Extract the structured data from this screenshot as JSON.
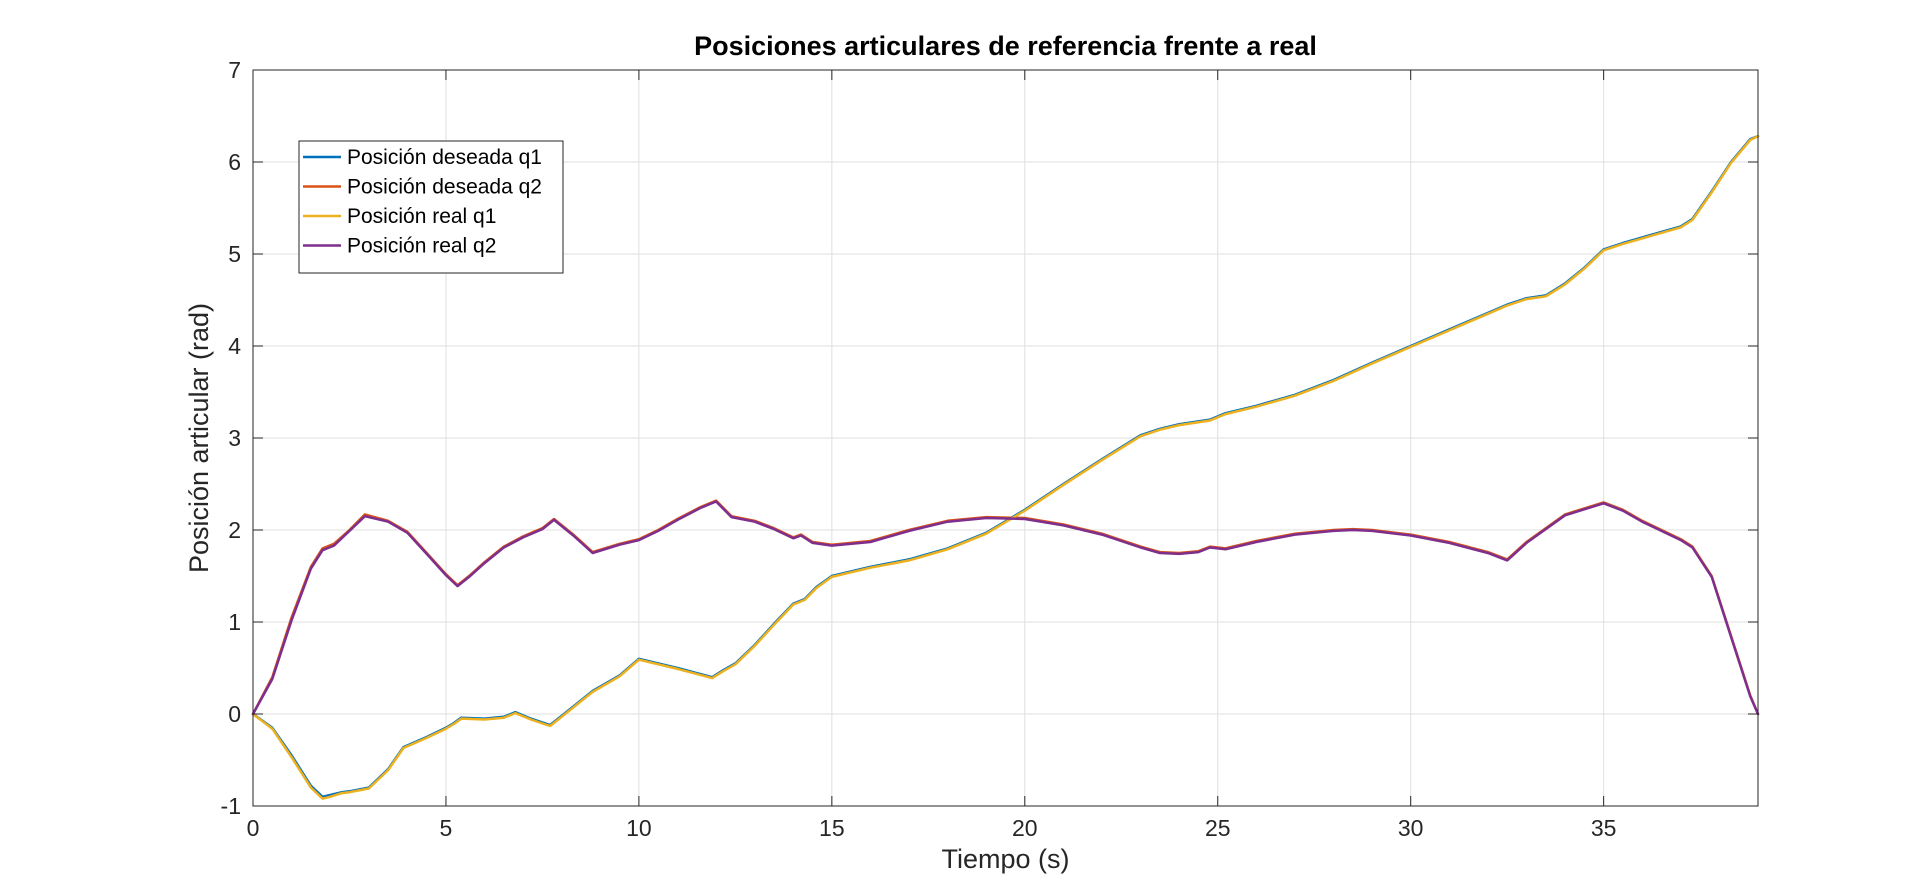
{
  "chart_data": {
    "type": "line",
    "title": "Posiciones articulares de referencia frente a real",
    "xlabel": "Tiempo (s)",
    "ylabel": "Posición articular (rad)",
    "xlim": [
      0,
      39
    ],
    "ylim": [
      -1,
      7
    ],
    "xticks": [
      0,
      5,
      10,
      15,
      20,
      25,
      30,
      35
    ],
    "yticks": [
      -1,
      0,
      1,
      2,
      3,
      4,
      5,
      6,
      7
    ],
    "xtick_labels": [
      "0",
      "5",
      "10",
      "15",
      "20",
      "25",
      "30",
      "35"
    ],
    "ytick_labels": [
      "-1",
      "0",
      "1",
      "2",
      "3",
      "4",
      "5",
      "6",
      "7"
    ],
    "grid": true,
    "legend_position": "top-left",
    "series": [
      {
        "name": "Posición deseada q1",
        "color": "#0072BD",
        "x": [
          0,
          0.5,
          1,
          1.5,
          1.8,
          2,
          2.3,
          2.5,
          3,
          3.5,
          3.9,
          4.5,
          5,
          5.2,
          5.4,
          6,
          6.5,
          6.8,
          7.2,
          7.7,
          8,
          8.8,
          9.5,
          10,
          11,
          11.9,
          12.2,
          12.5,
          13,
          13.5,
          14,
          14.3,
          14.6,
          15,
          16,
          17,
          18,
          19,
          20,
          21,
          22,
          23,
          23.5,
          24,
          24.8,
          25.2,
          26,
          27,
          28,
          29,
          30,
          31,
          32,
          32.5,
          33,
          33.5,
          34,
          34.5,
          35,
          35.5,
          36,
          37,
          37.3,
          37.8,
          38.3,
          38.8,
          39
        ],
        "values": [
          0,
          -0.15,
          -0.45,
          -0.78,
          -0.9,
          -0.88,
          -0.85,
          -0.84,
          -0.8,
          -0.6,
          -0.36,
          -0.25,
          -0.15,
          -0.1,
          -0.04,
          -0.05,
          -0.03,
          0.02,
          -0.05,
          -0.12,
          -0.02,
          0.25,
          0.42,
          0.6,
          0.5,
          0.4,
          0.48,
          0.55,
          0.75,
          0.98,
          1.2,
          1.25,
          1.38,
          1.5,
          1.6,
          1.68,
          1.8,
          1.97,
          2.22,
          2.5,
          2.77,
          3.03,
          3.1,
          3.15,
          3.2,
          3.27,
          3.35,
          3.47,
          3.63,
          3.82,
          4.0,
          4.18,
          4.36,
          4.45,
          4.52,
          4.55,
          4.68,
          4.85,
          5.05,
          5.12,
          5.18,
          5.3,
          5.38,
          5.68,
          6.0,
          6.25,
          6.28
        ]
      },
      {
        "name": "Posición deseada q2",
        "color": "#D95319",
        "x": [
          0,
          0.5,
          1,
          1.5,
          1.8,
          2.1,
          2.5,
          2.9,
          3.5,
          4,
          4.5,
          5,
          5.3,
          5.6,
          6,
          6.5,
          7,
          7.5,
          7.8,
          8.3,
          8.8,
          9.5,
          10,
          10.5,
          11,
          11.6,
          12,
          12.4,
          13,
          13.5,
          14,
          14.2,
          14.5,
          15,
          16,
          17,
          18,
          19,
          20,
          21,
          22,
          23,
          23.5,
          24,
          24.5,
          24.8,
          25.2,
          26,
          27,
          28,
          28.5,
          29,
          30,
          31,
          32,
          32.5,
          33,
          34,
          35,
          35.5,
          36,
          37,
          37.3,
          37.8,
          38.3,
          38.8,
          39
        ],
        "values": [
          0,
          0.4,
          1.05,
          1.6,
          1.8,
          1.85,
          2.0,
          2.17,
          2.1,
          1.98,
          1.75,
          1.52,
          1.4,
          1.5,
          1.65,
          1.82,
          1.93,
          2.02,
          2.12,
          1.95,
          1.76,
          1.85,
          1.9,
          2.0,
          2.12,
          2.25,
          2.32,
          2.15,
          2.1,
          2.02,
          1.92,
          1.95,
          1.87,
          1.84,
          1.88,
          2.0,
          2.1,
          2.14,
          2.13,
          2.06,
          1.96,
          1.82,
          1.76,
          1.75,
          1.77,
          1.82,
          1.8,
          1.88,
          1.96,
          2.0,
          2.01,
          2.0,
          1.95,
          1.87,
          1.76,
          1.68,
          1.87,
          2.17,
          2.3,
          2.22,
          2.1,
          1.9,
          1.82,
          1.5,
          0.85,
          0.2,
          0
        ]
      },
      {
        "name": "Posición real q1",
        "color": "#EDB120",
        "x": [
          0,
          0.5,
          1,
          1.5,
          1.8,
          2,
          2.3,
          2.5,
          3,
          3.5,
          3.9,
          4.5,
          5,
          5.2,
          5.4,
          6,
          6.5,
          6.8,
          7.2,
          7.7,
          8,
          8.8,
          9.5,
          10,
          11,
          11.9,
          12.2,
          12.5,
          13,
          13.5,
          14,
          14.3,
          14.6,
          15,
          16,
          17,
          18,
          19,
          20,
          21,
          22,
          23,
          23.5,
          24,
          24.8,
          25.2,
          26,
          27,
          28,
          29,
          30,
          31,
          32,
          32.5,
          33,
          33.5,
          34,
          34.5,
          35,
          35.5,
          36,
          37,
          37.3,
          37.8,
          38.3,
          38.8,
          39
        ],
        "values": [
          0,
          -0.16,
          -0.47,
          -0.8,
          -0.92,
          -0.9,
          -0.86,
          -0.85,
          -0.81,
          -0.61,
          -0.37,
          -0.26,
          -0.16,
          -0.11,
          -0.05,
          -0.06,
          -0.04,
          0.01,
          -0.06,
          -0.13,
          -0.03,
          0.24,
          0.41,
          0.59,
          0.49,
          0.39,
          0.47,
          0.54,
          0.74,
          0.97,
          1.19,
          1.24,
          1.37,
          1.49,
          1.59,
          1.67,
          1.79,
          1.96,
          2.21,
          2.49,
          2.76,
          3.02,
          3.09,
          3.14,
          3.19,
          3.26,
          3.34,
          3.46,
          3.62,
          3.81,
          3.99,
          4.17,
          4.35,
          4.44,
          4.51,
          4.54,
          4.67,
          4.84,
          5.04,
          5.11,
          5.17,
          5.29,
          5.37,
          5.67,
          5.99,
          6.24,
          6.28
        ]
      },
      {
        "name": "Posición real q2",
        "color": "#7E2F8E",
        "x": [
          0,
          0.5,
          1,
          1.5,
          1.8,
          2.1,
          2.5,
          2.9,
          3.5,
          4,
          4.5,
          5,
          5.3,
          5.6,
          6,
          6.5,
          7,
          7.5,
          7.8,
          8.3,
          8.8,
          9.5,
          10,
          10.5,
          11,
          11.6,
          12,
          12.4,
          13,
          13.5,
          14,
          14.2,
          14.5,
          15,
          16,
          17,
          18,
          19,
          20,
          21,
          22,
          23,
          23.5,
          24,
          24.5,
          24.8,
          25.2,
          26,
          27,
          28,
          28.5,
          29,
          30,
          31,
          32,
          32.5,
          33,
          34,
          35,
          35.5,
          36,
          37,
          37.3,
          37.8,
          38.3,
          38.8,
          39
        ],
        "values": [
          0,
          0.38,
          1.02,
          1.58,
          1.78,
          1.83,
          1.99,
          2.15,
          2.09,
          1.97,
          1.74,
          1.51,
          1.39,
          1.49,
          1.64,
          1.81,
          1.92,
          2.01,
          2.11,
          1.94,
          1.75,
          1.84,
          1.89,
          1.99,
          2.11,
          2.24,
          2.31,
          2.14,
          2.09,
          2.01,
          1.91,
          1.94,
          1.86,
          1.83,
          1.87,
          1.99,
          2.09,
          2.13,
          2.12,
          2.05,
          1.95,
          1.81,
          1.75,
          1.74,
          1.76,
          1.81,
          1.79,
          1.87,
          1.95,
          1.99,
          2.0,
          1.99,
          1.94,
          1.86,
          1.75,
          1.67,
          1.86,
          2.16,
          2.29,
          2.21,
          2.09,
          1.89,
          1.81,
          1.49,
          0.84,
          0.19,
          0
        ]
      }
    ]
  }
}
